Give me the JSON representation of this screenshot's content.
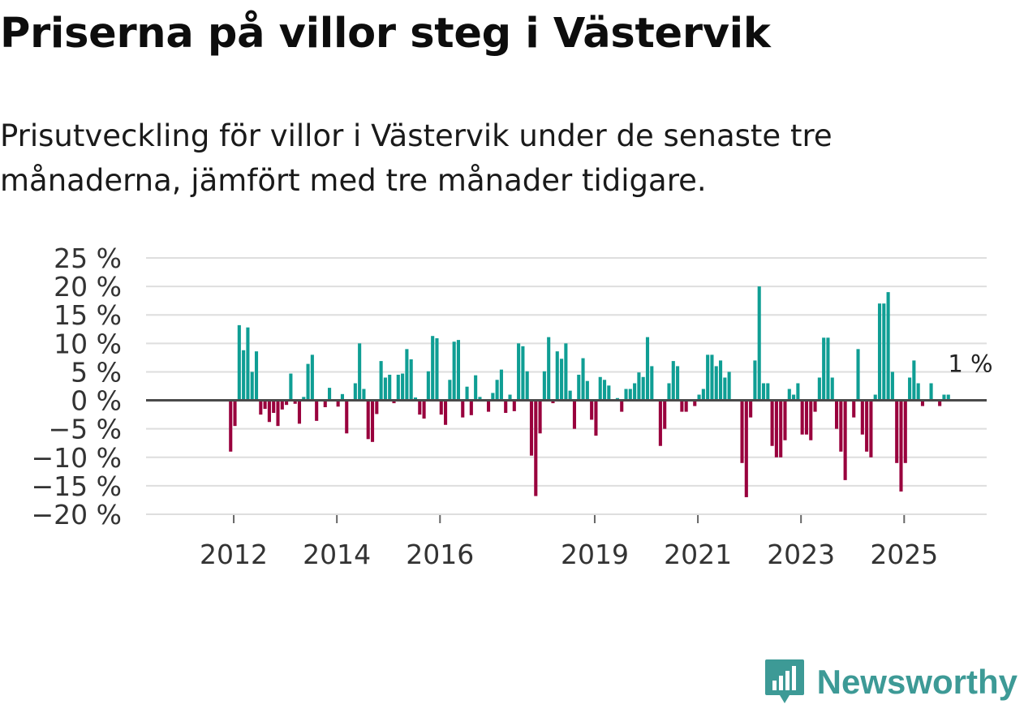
{
  "title": "Priserna på villor steg i Västervik",
  "subtitle": "Prisutveckling för villor i Västervik under de senaste tre månaderna, jämfört med tre månader tidigare.",
  "brand": {
    "name": "Newsworthy",
    "color": "#3d9a96"
  },
  "colors": {
    "positive": "#0f9e94",
    "negative": "#99003d",
    "zero_line": "#4a4a4a",
    "grid": "#dedede"
  },
  "chart_data": {
    "type": "bar",
    "title": "",
    "xlabel": "",
    "ylabel": "",
    "ylim": [
      -20,
      25
    ],
    "y_ticks": [
      -20,
      -15,
      -10,
      -5,
      0,
      5,
      10,
      15,
      20,
      25
    ],
    "y_tick_labels": [
      "−20 %",
      "−15 %",
      "−10 %",
      "−5 %",
      "0 %",
      "5 %",
      "10 %",
      "15 %",
      "20 %",
      "25 %"
    ],
    "x_tick_labels": [
      "2012",
      "2014",
      "2016",
      "2019",
      "2021",
      "2023",
      "2025"
    ],
    "x_tick_years": [
      2012,
      2014,
      2016,
      2019,
      2021,
      2023,
      2025
    ],
    "x_range": [
      2010.3,
      2026.6
    ],
    "start_year": 2011.94,
    "month_step": 0.0833333,
    "annotation": {
      "text": "1 %",
      "value": 1
    },
    "values": [
      -9,
      -4.5,
      13.2,
      8.8,
      12.8,
      5,
      8.6,
      -2.5,
      -1.5,
      -3.8,
      -2.2,
      -4.5,
      -1.6,
      -0.8,
      4.7,
      -0.6,
      -4.1,
      0.6,
      6.4,
      8,
      -3.6,
      0,
      -1.2,
      2.2,
      0,
      -1.1,
      1.1,
      -5.8,
      0,
      3,
      10,
      2,
      -6.8,
      -7.3,
      -2.4,
      6.9,
      4,
      4.5,
      -0.5,
      4.5,
      4.7,
      9,
      7.2,
      0.5,
      -2.5,
      -3.2,
      5.1,
      11.3,
      10.9,
      -2.5,
      -4.3,
      3.6,
      10.3,
      10.6,
      -3,
      2.4,
      -2.6,
      4.4,
      0.6,
      0,
      -2,
      1.3,
      3.6,
      5.4,
      -2.2,
      1,
      -1.9,
      10,
      9.5,
      5.1,
      -9.7,
      -16.8,
      -5.8,
      5.1,
      11.1,
      -0.5,
      8.6,
      7.3,
      10,
      1.7,
      -5,
      4.5,
      7.4,
      3.4,
      -3.4,
      -6.2,
      4.1,
      3.6,
      2.6,
      0,
      0.4,
      -2,
      2,
      2,
      3,
      4.9,
      4.1,
      11.1,
      6,
      0,
      -8,
      -5,
      3,
      6.9,
      6,
      -2,
      -2,
      0,
      -1,
      1,
      2,
      8,
      8,
      6,
      7,
      4,
      5,
      0,
      0,
      -11,
      -17,
      -3,
      7,
      20,
      3,
      3,
      -8,
      -10,
      -10,
      -7,
      2,
      1,
      3,
      -6,
      -6,
      -7,
      -2,
      4,
      11,
      11,
      4,
      -5,
      -9,
      -14,
      0,
      -3,
      9,
      -6,
      -9,
      -10,
      1,
      17,
      17,
      19,
      5,
      -11,
      -16,
      -11,
      4,
      7,
      3,
      -1,
      0,
      3,
      0,
      -1,
      1,
      1
    ]
  }
}
